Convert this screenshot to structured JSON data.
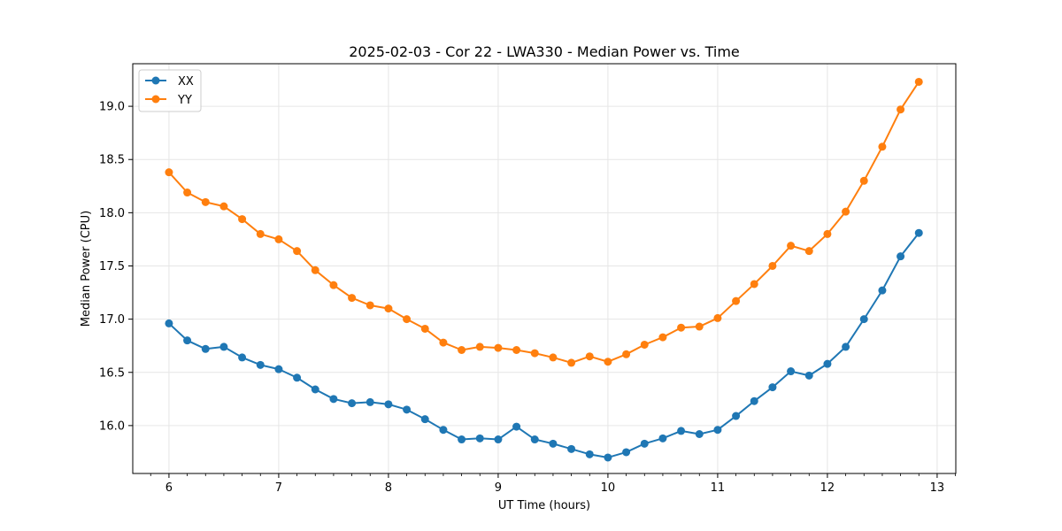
{
  "chart_data": {
    "type": "line",
    "title": "2025-02-03 - Cor 22 - LWA330 - Median Power vs. Time",
    "xlabel": "UT Time (hours)",
    "ylabel": "Median Power (CPU)",
    "xlim": [
      5.67,
      13.17
    ],
    "ylim": [
      15.55,
      19.4
    ],
    "xticks": [
      6,
      7,
      8,
      9,
      10,
      11,
      12,
      13
    ],
    "xtick_labels": [
      "6",
      "7",
      "8",
      "9",
      "10",
      "11",
      "12",
      "13"
    ],
    "yticks": [
      16.0,
      16.5,
      17.0,
      17.5,
      18.0,
      18.5,
      19.0
    ],
    "ytick_labels": [
      "16.0",
      "16.5",
      "17.0",
      "17.5",
      "18.0",
      "18.5",
      "19.0"
    ],
    "grid": true,
    "legend_position": "top-left",
    "x": [
      6.0,
      6.1667,
      6.3333,
      6.5,
      6.6667,
      6.8333,
      7.0,
      7.1667,
      7.3333,
      7.5,
      7.6667,
      7.8333,
      8.0,
      8.1667,
      8.3333,
      8.5,
      8.6667,
      8.8333,
      9.0,
      9.1667,
      9.3333,
      9.5,
      9.6667,
      9.8333,
      10.0,
      10.1667,
      10.3333,
      10.5,
      10.6667,
      10.8333,
      11.0,
      11.1667,
      11.3333,
      11.5,
      11.6667,
      11.8333,
      12.0,
      12.1667,
      12.3333,
      12.5,
      12.6667,
      12.8333
    ],
    "series": [
      {
        "name": "XX",
        "color": "#1f77b4",
        "values": [
          16.96,
          16.8,
          16.72,
          16.74,
          16.64,
          16.57,
          16.53,
          16.45,
          16.34,
          16.25,
          16.21,
          16.22,
          16.2,
          16.15,
          16.06,
          15.96,
          15.87,
          15.88,
          15.87,
          15.99,
          15.87,
          15.83,
          15.78,
          15.73,
          15.7,
          15.75,
          15.83,
          15.88,
          15.95,
          15.92,
          15.96,
          16.09,
          16.23,
          16.36,
          16.51,
          16.47,
          16.58,
          16.74,
          17.0,
          17.27,
          17.59,
          17.81
        ]
      },
      {
        "name": "YY",
        "color": "#ff7f0e",
        "values": [
          18.38,
          18.19,
          18.1,
          18.06,
          17.94,
          17.8,
          17.75,
          17.64,
          17.46,
          17.32,
          17.2,
          17.13,
          17.1,
          17.0,
          16.91,
          16.78,
          16.71,
          16.74,
          16.73,
          16.71,
          16.68,
          16.64,
          16.59,
          16.65,
          16.6,
          16.67,
          16.76,
          16.83,
          16.92,
          16.93,
          17.01,
          17.17,
          17.33,
          17.5,
          17.69,
          17.64,
          17.8,
          18.01,
          18.3,
          18.62,
          18.97,
          19.23
        ]
      }
    ]
  }
}
